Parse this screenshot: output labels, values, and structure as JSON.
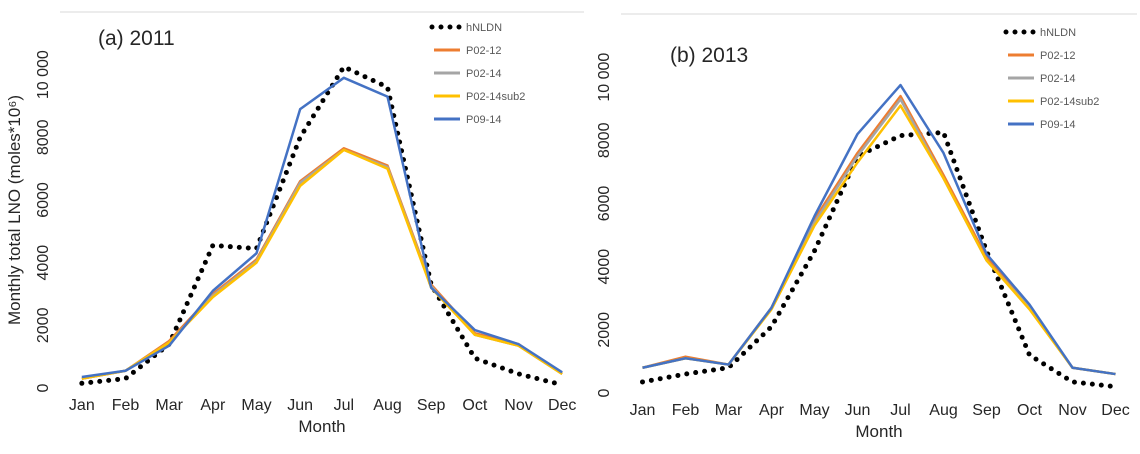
{
  "chart_data": [
    {
      "type": "line",
      "annotation": "(a) 2011",
      "x_label": "Month",
      "y_label": "Monthly total LNO (moles*10⁶)",
      "categories": [
        "Jan",
        "Feb",
        "Mar",
        "Apr",
        "May",
        "Jun",
        "Jul",
        "Aug",
        "Sep",
        "Oct",
        "Nov",
        "Dec"
      ],
      "ylim": [
        0,
        12000
      ],
      "yticks": [
        0,
        2000,
        4000,
        6000,
        8000,
        {
          "value": 10000,
          "label": "10 000"
        }
      ],
      "series": [
        {
          "name": "hNLDN",
          "color": "#000000",
          "dotted": true,
          "values": [
            150,
            300,
            1400,
            4550,
            4450,
            8000,
            10250,
            9600,
            3300,
            950,
            450,
            100
          ]
        },
        {
          "name": "P02-12",
          "color": "#ed7d31",
          "values": [
            300,
            550,
            1500,
            3000,
            4100,
            6600,
            7650,
            7100,
            3300,
            1750,
            1400,
            450
          ]
        },
        {
          "name": "P02-14",
          "color": "#a5a5a5",
          "values": [
            300,
            550,
            1450,
            2950,
            4050,
            6550,
            7600,
            7050,
            3250,
            1700,
            1350,
            450
          ]
        },
        {
          "name": "P02-14sub2",
          "color": "#ffc000",
          "values": [
            300,
            550,
            1450,
            2900,
            4000,
            6450,
            7600,
            7000,
            3200,
            1700,
            1350,
            450
          ]
        },
        {
          "name": "P09-14",
          "color": "#4472c4",
          "values": [
            350,
            550,
            1350,
            3100,
            4300,
            8900,
            9900,
            9300,
            3200,
            1850,
            1400,
            500
          ]
        }
      ]
    },
    {
      "type": "line",
      "annotation": "(b) 2013",
      "x_label": "Month",
      "categories": [
        "Jan",
        "Feb",
        "Mar",
        "Apr",
        "May",
        "Jun",
        "Jul",
        "Aug",
        "Sep",
        "Oct",
        "Nov",
        "Dec"
      ],
      "ylim": [
        0,
        12000
      ],
      "yticks": [
        0,
        2000,
        4000,
        6000,
        8000,
        {
          "value": 10000,
          "label": "10 000"
        }
      ],
      "series": [
        {
          "name": "hNLDN",
          "color": "#000000",
          "dotted": true,
          "values": [
            350,
            600,
            800,
            2100,
            4500,
            7500,
            8150,
            8250,
            4500,
            1200,
            350,
            200
          ]
        },
        {
          "name": "P02-12",
          "color": "#ed7d31",
          "values": [
            800,
            1150,
            900,
            2700,
            5500,
            7600,
            9400,
            6900,
            4300,
            2700,
            800,
            600
          ]
        },
        {
          "name": "P02-14",
          "color": "#a5a5a5",
          "values": [
            800,
            1100,
            900,
            2700,
            5400,
            7500,
            9300,
            6800,
            4200,
            2700,
            800,
            600
          ]
        },
        {
          "name": "P02-14sub2",
          "color": "#ffc000",
          "values": [
            800,
            1100,
            900,
            2650,
            5300,
            7300,
            9100,
            6800,
            4200,
            2650,
            800,
            600
          ]
        },
        {
          "name": "P09-14",
          "color": "#4472c4",
          "values": [
            800,
            1100,
            900,
            2700,
            5600,
            8200,
            9750,
            7600,
            4400,
            2800,
            800,
            600
          ]
        }
      ]
    }
  ]
}
